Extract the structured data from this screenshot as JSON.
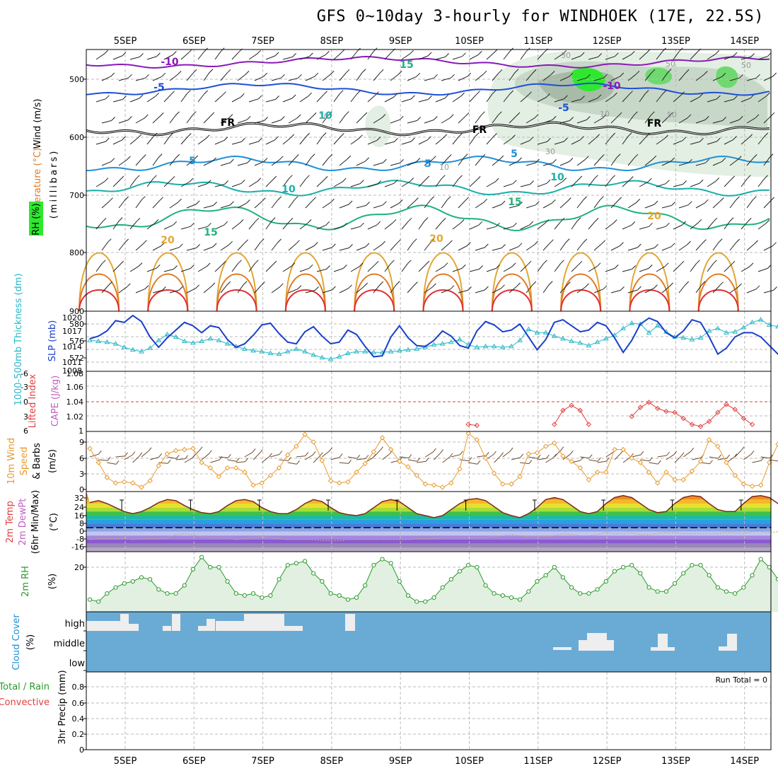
{
  "title": "GFS 0~10day 3-hourly for WINDHOEK (17E, 22.5S)",
  "dates": [
    "5SEP",
    "6SEP",
    "7SEP",
    "8SEP",
    "9SEP",
    "10SEP",
    "11SEP",
    "12SEP",
    "13SEP",
    "14SEP"
  ],
  "colors": {
    "purple": "#8a1ab8",
    "blue": "#1f4fd6",
    "black": "#000000",
    "sky": "#1e8fd8",
    "teal": "#18b0a8",
    "green": "#1fb27a",
    "gold": "#e2a634",
    "orange": "#e07a24",
    "red": "#e03030",
    "rh_dark": "#a8bba8",
    "rh_mid": "#c8d8c8",
    "rh_light": "#e2efe2",
    "rh_green": "#2ee82e",
    "thick": "#29b8c8",
    "slp": "#1a3fc8",
    "li": "#e04040",
    "wind10": "#e89a2e",
    "rh2m": "#2a9a2a",
    "rh2m_fill": "#e2f0e2",
    "cloud": "#6aabd6",
    "cloud_clear": "#eeeeee",
    "grid": "#bbbbbb"
  },
  "panels": {
    "upper_air": {
      "label_wind": "Wind (m/s)",
      "label_temp": "Temperature (°C)",
      "label_rh": "RH (%)",
      "axis_label": "(millibars)",
      "y_ticks": [
        "500",
        "600",
        "700",
        "800",
        "900"
      ],
      "contour_labels": [
        {
          "text": "-10",
          "color": "purple"
        },
        {
          "text": "-5",
          "color": "blue"
        },
        {
          "text": "FR",
          "color": "black"
        },
        {
          "text": "5",
          "color": "sky"
        },
        {
          "text": "10",
          "color": "teal"
        },
        {
          "text": "15",
          "color": "green"
        },
        {
          "text": "20",
          "color": "gold"
        },
        {
          "text": "-10",
          "color": "purple"
        },
        {
          "text": "-5",
          "color": "blue"
        },
        {
          "text": "FR",
          "color": "black"
        },
        {
          "text": "FR",
          "color": "black"
        },
        {
          "text": "5",
          "color": "sky"
        },
        {
          "text": "10",
          "color": "teal"
        },
        {
          "text": "15",
          "color": "green"
        },
        {
          "text": "20",
          "color": "gold"
        },
        {
          "text": "20",
          "color": "gold"
        },
        {
          "text": "5",
          "color": "sky"
        },
        {
          "text": "10",
          "color": "teal"
        },
        {
          "text": "15",
          "color": "green"
        }
      ],
      "rh_labels": [
        "30",
        "50",
        "50",
        "50",
        "10",
        "10",
        "10",
        "30"
      ]
    },
    "thickness": {
      "label_left": "1000-500mb Thickness (dm)",
      "label_right": "SLP (mb)",
      "left_ticks": [
        "580",
        "576",
        "572"
      ],
      "right_ticks": [
        "1020",
        "1017",
        "1014",
        "1011",
        "1008"
      ]
    },
    "lifted": {
      "label_left": "Lifted Index",
      "label_right": "CAPE (J/kg)",
      "left_ticks": [
        "-6",
        "-3",
        "0",
        "3",
        "6"
      ],
      "right_ticks": [
        "1.08",
        "1.06",
        "1.04",
        "1.02",
        "1"
      ]
    },
    "wind10m": {
      "label1": "10m Wind",
      "label2": "Speed",
      "label3": "& Barbs",
      "axis_label": "(m/s)",
      "y_ticks": [
        "9",
        "6",
        "3",
        "0"
      ]
    },
    "temp2m": {
      "label1": "2m Temp",
      "label2": "2m DewPt",
      "label3": "(6hr Min/Max)",
      "axis_label": "(°C)",
      "y_ticks": [
        "32",
        "24",
        "16",
        "8",
        "0",
        "-8",
        "-16"
      ]
    },
    "rh2m": {
      "label1": "2m RH",
      "axis_label": "(%)",
      "y_ticks": [
        "20"
      ]
    },
    "cloud": {
      "label1": "Cloud Cover",
      "axis_label": "(%)",
      "levels": [
        "high",
        "middle",
        "low"
      ]
    },
    "precip": {
      "label1": "Total / Rain",
      "label2": "Convective",
      "axis_label": "3hr Precip (mm)",
      "y_ticks": [
        "0.8",
        "0.6",
        "0.4",
        "0.2",
        "0"
      ],
      "run_total": "Run Total = 0"
    }
  },
  "chart_data": [
    {
      "type": "line",
      "title": "1000-500mb Thickness (dm)",
      "x_unit": "3-hourly step",
      "series": [
        {
          "name": "Thickness",
          "values": [
            575.2,
            575.0,
            574.8,
            574.4,
            573.6,
            573.0,
            572.6,
            573.4,
            575.2,
            576.6,
            576.0,
            575.0,
            574.6,
            575.0,
            575.6,
            575.2,
            574.4,
            573.8,
            573.2,
            572.8,
            572.6,
            572.2,
            572.0,
            572.6,
            573.2,
            572.6,
            571.8,
            571.2,
            570.8,
            571.4,
            572.2,
            572.6,
            572.6,
            572.4,
            572.4,
            572.6,
            572.8,
            573.0,
            573.2,
            573.6,
            574.2,
            574.4,
            574.8,
            575.4,
            574.2,
            573.6,
            573.8,
            573.8,
            573.6,
            573.8,
            575.2,
            577.8,
            577.0,
            577.0,
            576.2,
            575.6,
            575.0,
            574.6,
            574.0,
            574.8,
            575.6,
            576.4,
            578.0,
            579.2,
            579.0,
            577.0,
            578.6,
            577.2,
            576.0,
            575.8,
            575.4,
            575.8,
            577.4,
            578.0,
            577.0,
            577.2,
            578.2,
            579.4,
            580.0,
            578.8,
            578.4,
            577.2,
            577.0,
            574.8,
            574.2
          ]
        }
      ]
    },
    {
      "type": "line",
      "title": "SLP (mb)",
      "series": [
        {
          "name": "SLP",
          "values": [
            1015.6,
            1016.2,
            1017.4,
            1019.8,
            1019.4,
            1021.0,
            1019.6,
            1016.0,
            1013.6,
            1015.8,
            1017.6,
            1019.4,
            1018.6,
            1017.0,
            1018.6,
            1018.2,
            1015.4,
            1013.6,
            1014.4,
            1016.4,
            1018.8,
            1019.2,
            1016.8,
            1014.8,
            1014.4,
            1017.2,
            1018.4,
            1016.2,
            1014.4,
            1014.8,
            1017.6,
            1016.6,
            1013.8,
            1011.4,
            1011.6,
            1016.0,
            1018.6,
            1015.8,
            1014.0,
            1013.8,
            1015.2,
            1017.4,
            1016.2,
            1014.0,
            1013.4,
            1017.4,
            1019.6,
            1018.8,
            1017.2,
            1017.6,
            1019.0,
            1016.0,
            1013.0,
            1015.4,
            1019.4,
            1020.0,
            1018.6,
            1017.2,
            1017.6,
            1019.4,
            1018.6,
            1015.8,
            1012.4,
            1015.2,
            1019.0,
            1020.4,
            1019.6,
            1017.0,
            1015.8,
            1017.4,
            1020.0,
            1019.4,
            1016.0,
            1012.0,
            1013.4,
            1016.0,
            1017.0,
            1017.0,
            1016.0,
            1014.0,
            1012.0,
            1014.4,
            1017.4,
            1018.2,
            1017.8
          ]
        }
      ]
    },
    {
      "type": "line",
      "title": "Lifted Index",
      "series": [
        {
          "name": "Lifted Index",
          "values": [
            6,
            6,
            6,
            6,
            6,
            6,
            6,
            6,
            6,
            6,
            6,
            6,
            6,
            6,
            6,
            6,
            6,
            6,
            6,
            6,
            6,
            6,
            6,
            6,
            6,
            6,
            6,
            6,
            6,
            6,
            6,
            6,
            6,
            6,
            6,
            6,
            6,
            6,
            6,
            6,
            6,
            6,
            6,
            6,
            4.6,
            4.8,
            6,
            6,
            6,
            6,
            6,
            6,
            6,
            6,
            4.6,
            1.8,
            0.8,
            1.8,
            4.6,
            6,
            6,
            6,
            6,
            3.0,
            1.2,
            0.2,
            1.4,
            2.0,
            2.2,
            3.4,
            4.6,
            5.0,
            4.0,
            2.2,
            0.6,
            1.6,
            3.4,
            4.6,
            6,
            6,
            6,
            3.2,
            0.8,
            2.4,
            4.8
          ]
        }
      ]
    },
    {
      "type": "line",
      "title": "10m Wind Speed (m/s)",
      "series": [
        {
          "name": "10m Wind",
          "values": [
            7.6,
            5.0,
            2.2,
            1.2,
            1.4,
            1.2,
            0.4,
            1.6,
            4.4,
            6.6,
            7.2,
            7.4,
            7.6,
            5.0,
            4.0,
            2.4,
            4.0,
            4.0,
            3.2,
            0.8,
            1.2,
            2.6,
            4.0,
            6.4,
            8.0,
            10.2,
            8.8,
            5.4,
            1.6,
            1.2,
            1.4,
            3.2,
            4.8,
            7.0,
            9.6,
            7.4,
            5.2,
            4.2,
            2.6,
            1.0,
            0.8,
            0.4,
            1.2,
            3.8,
            10.4,
            9.2,
            5.8,
            3.0,
            1.0,
            1.0,
            2.4,
            6.6,
            6.8,
            8.0,
            8.6,
            6.2,
            5.2,
            4.0,
            1.8,
            3.2,
            3.2,
            7.4,
            7.4,
            5.8,
            5.0,
            3.2,
            1.2,
            3.2,
            1.8,
            1.8,
            3.4,
            5.2,
            9.2,
            8.0,
            5.0,
            2.6,
            1.0,
            0.6,
            0.8,
            5.0,
            8.4,
            4.0,
            2.4,
            2.0,
            0.8,
            0.6,
            1.8
          ]
        }
      ]
    },
    {
      "type": "area",
      "title": "2m Temp (°C)",
      "series": [
        {
          "name": "2m Temp",
          "values": [
            25,
            27,
            24,
            20,
            16,
            14,
            16,
            20,
            25,
            28,
            27,
            22,
            18,
            15,
            14,
            16,
            22,
            27,
            28,
            26,
            20,
            16,
            14,
            14,
            18,
            24,
            28,
            26,
            20,
            15,
            13,
            12,
            14,
            20,
            26,
            28,
            26,
            20,
            14,
            12,
            10,
            12,
            18,
            24,
            28,
            29,
            27,
            21,
            15,
            12,
            10,
            14,
            20,
            28,
            30,
            28,
            22,
            16,
            14,
            16,
            24,
            30,
            32,
            30,
            24,
            18,
            15,
            16,
            24,
            30,
            32,
            31,
            24,
            18,
            16,
            16,
            24,
            31,
            32,
            30,
            24,
            19,
            16,
            18,
            22
          ]
        },
        {
          "name": "2m DewPt",
          "values": [
            -12,
            -11,
            -11,
            -11,
            -11,
            -12,
            -11,
            -11,
            -11,
            -10,
            -7,
            -6,
            -7,
            -9,
            -10,
            -10,
            -10,
            -12,
            -11,
            -10,
            -9,
            -10,
            -11,
            -12,
            -12,
            -12,
            -12,
            -13,
            -13,
            -13,
            -12,
            -12,
            -12,
            -12,
            -12,
            -12,
            -12,
            -12,
            -11,
            -11,
            -11,
            -10,
            -10,
            -10,
            -10,
            -10,
            -10,
            -9,
            -8,
            -7,
            -8,
            -9,
            -8,
            -9,
            -8,
            -6,
            -7,
            -8,
            -8,
            -7,
            -5,
            -6,
            -6,
            -5,
            -7,
            -7,
            -6,
            -5,
            -5,
            -6,
            -6,
            -6,
            -6,
            -6,
            -5,
            -5,
            -6,
            -4,
            -4,
            -5,
            -4,
            -4,
            -5,
            -6,
            -6
          ]
        }
      ]
    },
    {
      "type": "area",
      "title": "2m RH (%)",
      "series": [
        {
          "name": "2m RH",
          "values": [
            5,
            4,
            8,
            11,
            13,
            14,
            16,
            15,
            10,
            8,
            8,
            12,
            20,
            26,
            21,
            21,
            14,
            8,
            7,
            8,
            6,
            7,
            15,
            22,
            23,
            24,
            18,
            14,
            8,
            7,
            5,
            6,
            12,
            22,
            25,
            23,
            14,
            7,
            4,
            4,
            6,
            11,
            15,
            19,
            22,
            21,
            12,
            8,
            7,
            6,
            5,
            9,
            14,
            17,
            21,
            16,
            11,
            8,
            8,
            10,
            14,
            19,
            21,
            22,
            18,
            11,
            9,
            9,
            13,
            18,
            22,
            22,
            17,
            11,
            9,
            8,
            11,
            17,
            25,
            21,
            15,
            9,
            7,
            9,
            14,
            20,
            23,
            21,
            15
          ]
        }
      ]
    },
    {
      "type": "bar",
      "title": "Cloud Cover (%)",
      "categories": [
        "high",
        "middle",
        "low"
      ],
      "series": [
        {
          "name": "clear",
          "values": [
            20,
            8,
            0
          ]
        }
      ]
    },
    {
      "type": "bar",
      "title": "3hr Precip (mm)",
      "series": [
        {
          "name": "Total / Rain",
          "values": [
            0,
            0,
            0,
            0,
            0,
            0,
            0,
            0,
            0,
            0
          ]
        }
      ],
      "ylim": [
        0,
        0.9
      ]
    }
  ]
}
